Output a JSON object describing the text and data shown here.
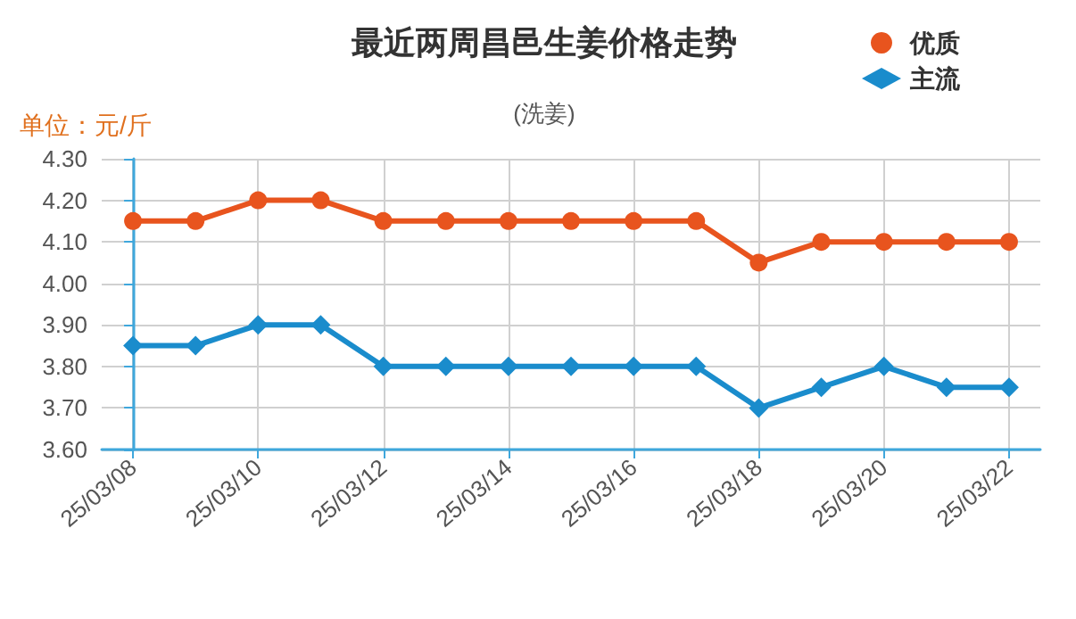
{
  "chart_data": {
    "type": "line",
    "title": "最近两周昌邑生姜价格走势",
    "subtitle": "(洗姜)",
    "ylabel": "单位：元/斤",
    "categories": [
      "25/03/08",
      null,
      "25/03/10",
      null,
      "25/03/12",
      null,
      "25/03/14",
      null,
      "25/03/16",
      null,
      "25/03/18",
      null,
      "25/03/20",
      null,
      "25/03/22"
    ],
    "series": [
      {
        "name": "优质",
        "color": "#e8541e",
        "marker": "circle",
        "values": [
          4.15,
          4.15,
          4.2,
          4.2,
          4.15,
          4.15,
          4.15,
          4.15,
          4.15,
          4.15,
          4.05,
          4.1,
          4.1,
          4.1,
          4.1
        ]
      },
      {
        "name": "主流",
        "color": "#1a8ccc",
        "marker": "diamond",
        "values": [
          3.85,
          3.85,
          3.9,
          3.9,
          3.8,
          3.8,
          3.8,
          3.8,
          3.8,
          3.8,
          3.7,
          3.75,
          3.8,
          3.75,
          3.75
        ]
      }
    ],
    "ylim": [
      3.6,
      4.3
    ],
    "yticks": [
      {
        "value": 3.6,
        "label": "3.60"
      },
      {
        "value": 3.7,
        "label": "3.70"
      },
      {
        "value": 3.8,
        "label": "3.80"
      },
      {
        "value": 3.9,
        "label": "3.90"
      },
      {
        "value": 4.0,
        "label": "4.00"
      },
      {
        "value": 4.1,
        "label": "4.10"
      },
      {
        "value": 4.2,
        "label": "4.20"
      },
      {
        "value": 4.3,
        "label": "4.30"
      }
    ],
    "grid": true,
    "legend": "top right",
    "line_style": "solid"
  }
}
